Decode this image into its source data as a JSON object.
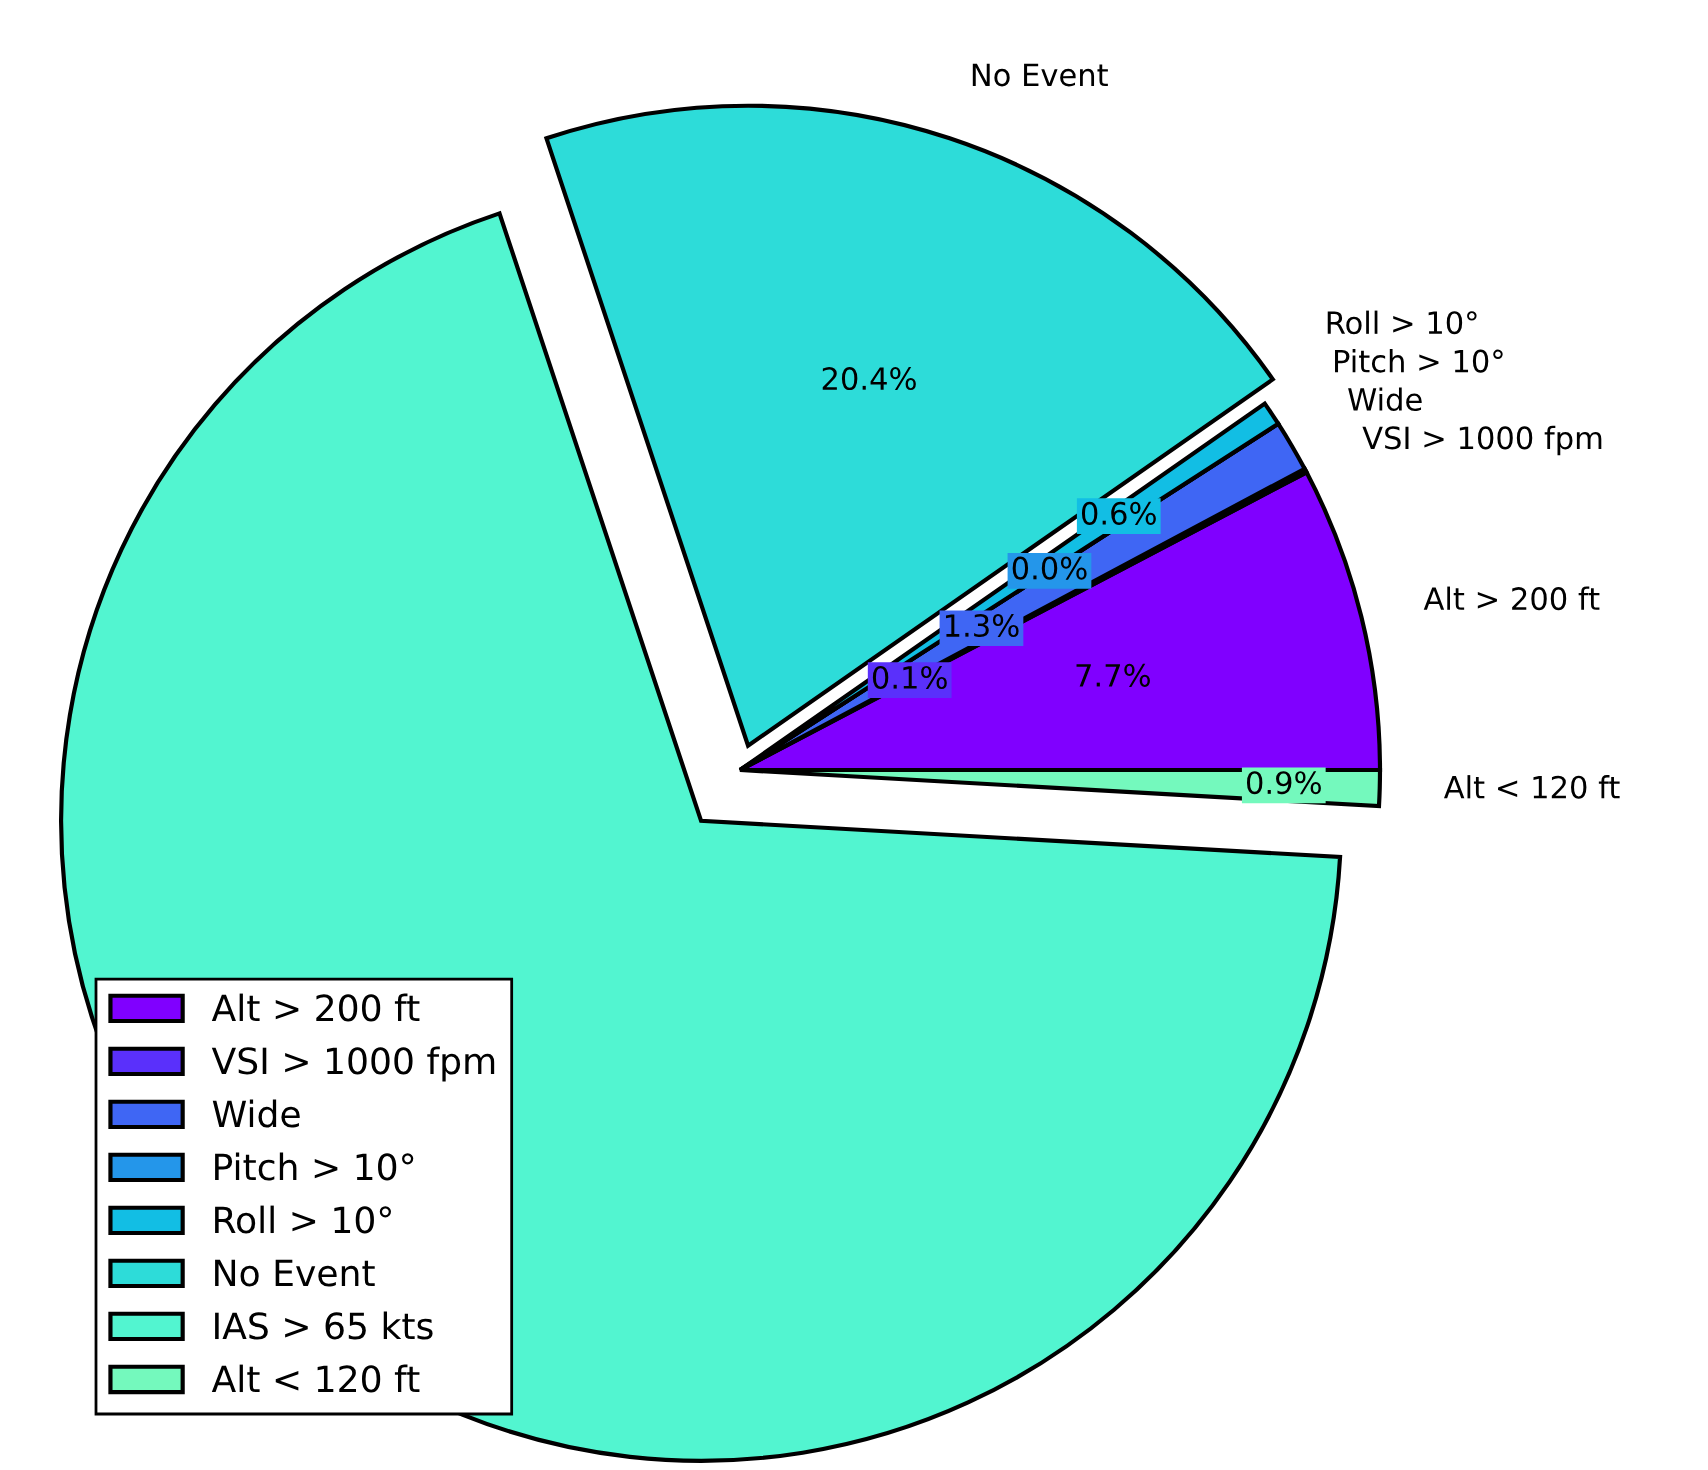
{
  "chart_data": {
    "type": "pie",
    "categories": [
      "Alt > 200 ft",
      "VSI > 1000 fpm",
      "Wide",
      "Pitch > 10°",
      "Roll > 10°",
      "No Event",
      "IAS > 65 kts",
      "Alt < 120 ft"
    ],
    "values": [
      7.7,
      0.1,
      1.3,
      0.0,
      0.6,
      20.4,
      69.0,
      0.9
    ],
    "colors": [
      "#8000ff",
      "#5a30fb",
      "#3f66f4",
      "#2496ea",
      "#12bee4",
      "#2ddcd9",
      "#52f5d0",
      "#74f9bd"
    ],
    "value_labels": [
      "7.7%",
      "0.1%",
      "1.3%",
      "0.0%",
      "0.6%",
      "20.4%",
      null,
      "0.9%"
    ],
    "legend": "bottom left"
  }
}
